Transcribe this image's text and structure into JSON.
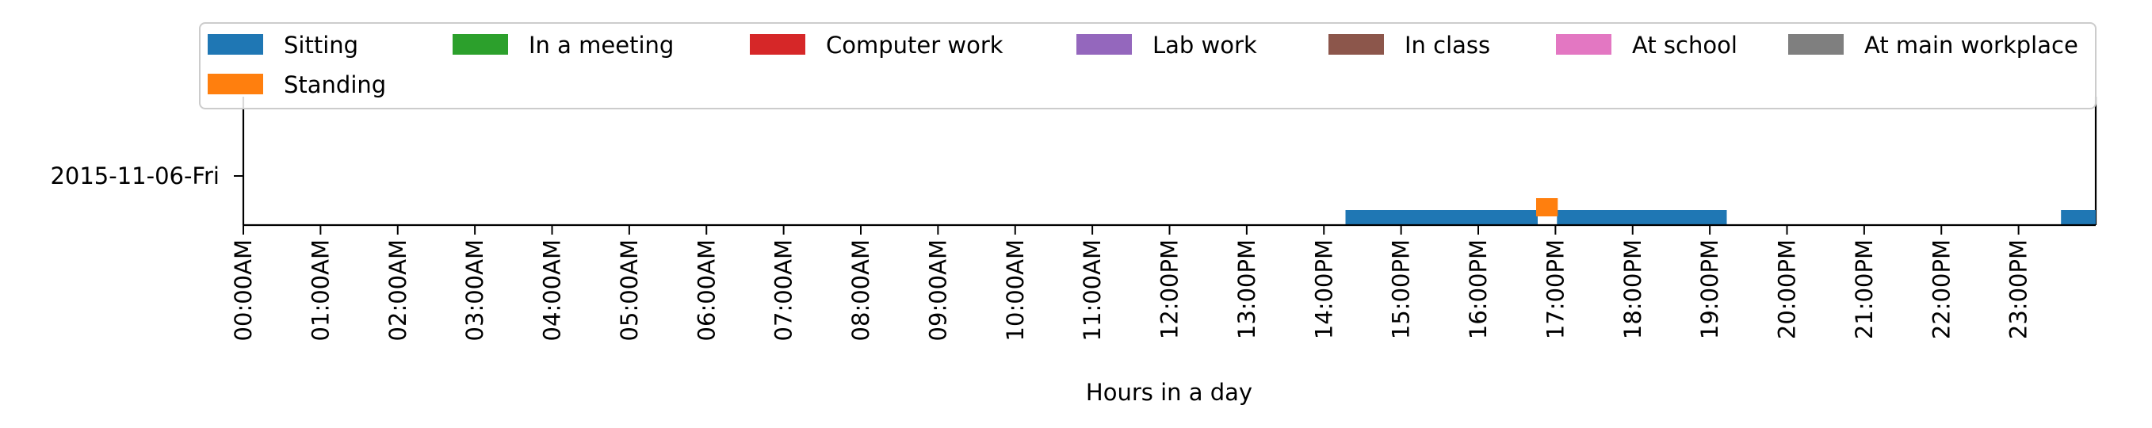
{
  "chart_data": {
    "type": "timeline",
    "title": "",
    "xlabel": "Hours in a day",
    "ylabel": "",
    "xlim": [
      0,
      24
    ],
    "x_ticks": [
      {
        "hour": 0,
        "label": "00:00AM"
      },
      {
        "hour": 1,
        "label": "01:00AM"
      },
      {
        "hour": 2,
        "label": "02:00AM"
      },
      {
        "hour": 3,
        "label": "03:00AM"
      },
      {
        "hour": 4,
        "label": "04:00AM"
      },
      {
        "hour": 5,
        "label": "05:00AM"
      },
      {
        "hour": 6,
        "label": "06:00AM"
      },
      {
        "hour": 7,
        "label": "07:00AM"
      },
      {
        "hour": 8,
        "label": "08:00AM"
      },
      {
        "hour": 9,
        "label": "09:00AM"
      },
      {
        "hour": 10,
        "label": "10:00AM"
      },
      {
        "hour": 11,
        "label": "11:00AM"
      },
      {
        "hour": 12,
        "label": "12:00PM"
      },
      {
        "hour": 13,
        "label": "13:00PM"
      },
      {
        "hour": 14,
        "label": "14:00PM"
      },
      {
        "hour": 15,
        "label": "15:00PM"
      },
      {
        "hour": 16,
        "label": "16:00PM"
      },
      {
        "hour": 17,
        "label": "17:00PM"
      },
      {
        "hour": 18,
        "label": "18:00PM"
      },
      {
        "hour": 19,
        "label": "19:00PM"
      },
      {
        "hour": 20,
        "label": "20:00PM"
      },
      {
        "hour": 21,
        "label": "21:00PM"
      },
      {
        "hour": 22,
        "label": "22:00PM"
      },
      {
        "hour": 23,
        "label": "23:00PM"
      }
    ],
    "y_categories": [
      "2015-11-06-Fri"
    ],
    "legend": {
      "placement": "top",
      "columns": 7,
      "entries": [
        {
          "name": "Sitting",
          "color": "#1f77b4"
        },
        {
          "name": "In a meeting",
          "color": "#2ca02c"
        },
        {
          "name": "Computer work",
          "color": "#d62728"
        },
        {
          "name": "Lab work",
          "color": "#9467bd"
        },
        {
          "name": "In class",
          "color": "#8c564b"
        },
        {
          "name": "At school",
          "color": "#e377c2"
        },
        {
          "name": "At main workplace",
          "color": "#7f7f7f"
        },
        {
          "name": "Standing",
          "color": "#ff7f0e"
        }
      ]
    },
    "series": [
      {
        "name": "Sitting",
        "color": "#1f77b4",
        "intervals": [
          {
            "start": 14.28,
            "end": 16.77
          },
          {
            "start": 17.02,
            "end": 19.22
          },
          {
            "start": 23.55,
            "end": 24.0
          }
        ]
      },
      {
        "name": "Standing",
        "color": "#ff7f0e",
        "intervals": [
          {
            "start": 16.75,
            "end": 17.03
          }
        ]
      }
    ]
  }
}
